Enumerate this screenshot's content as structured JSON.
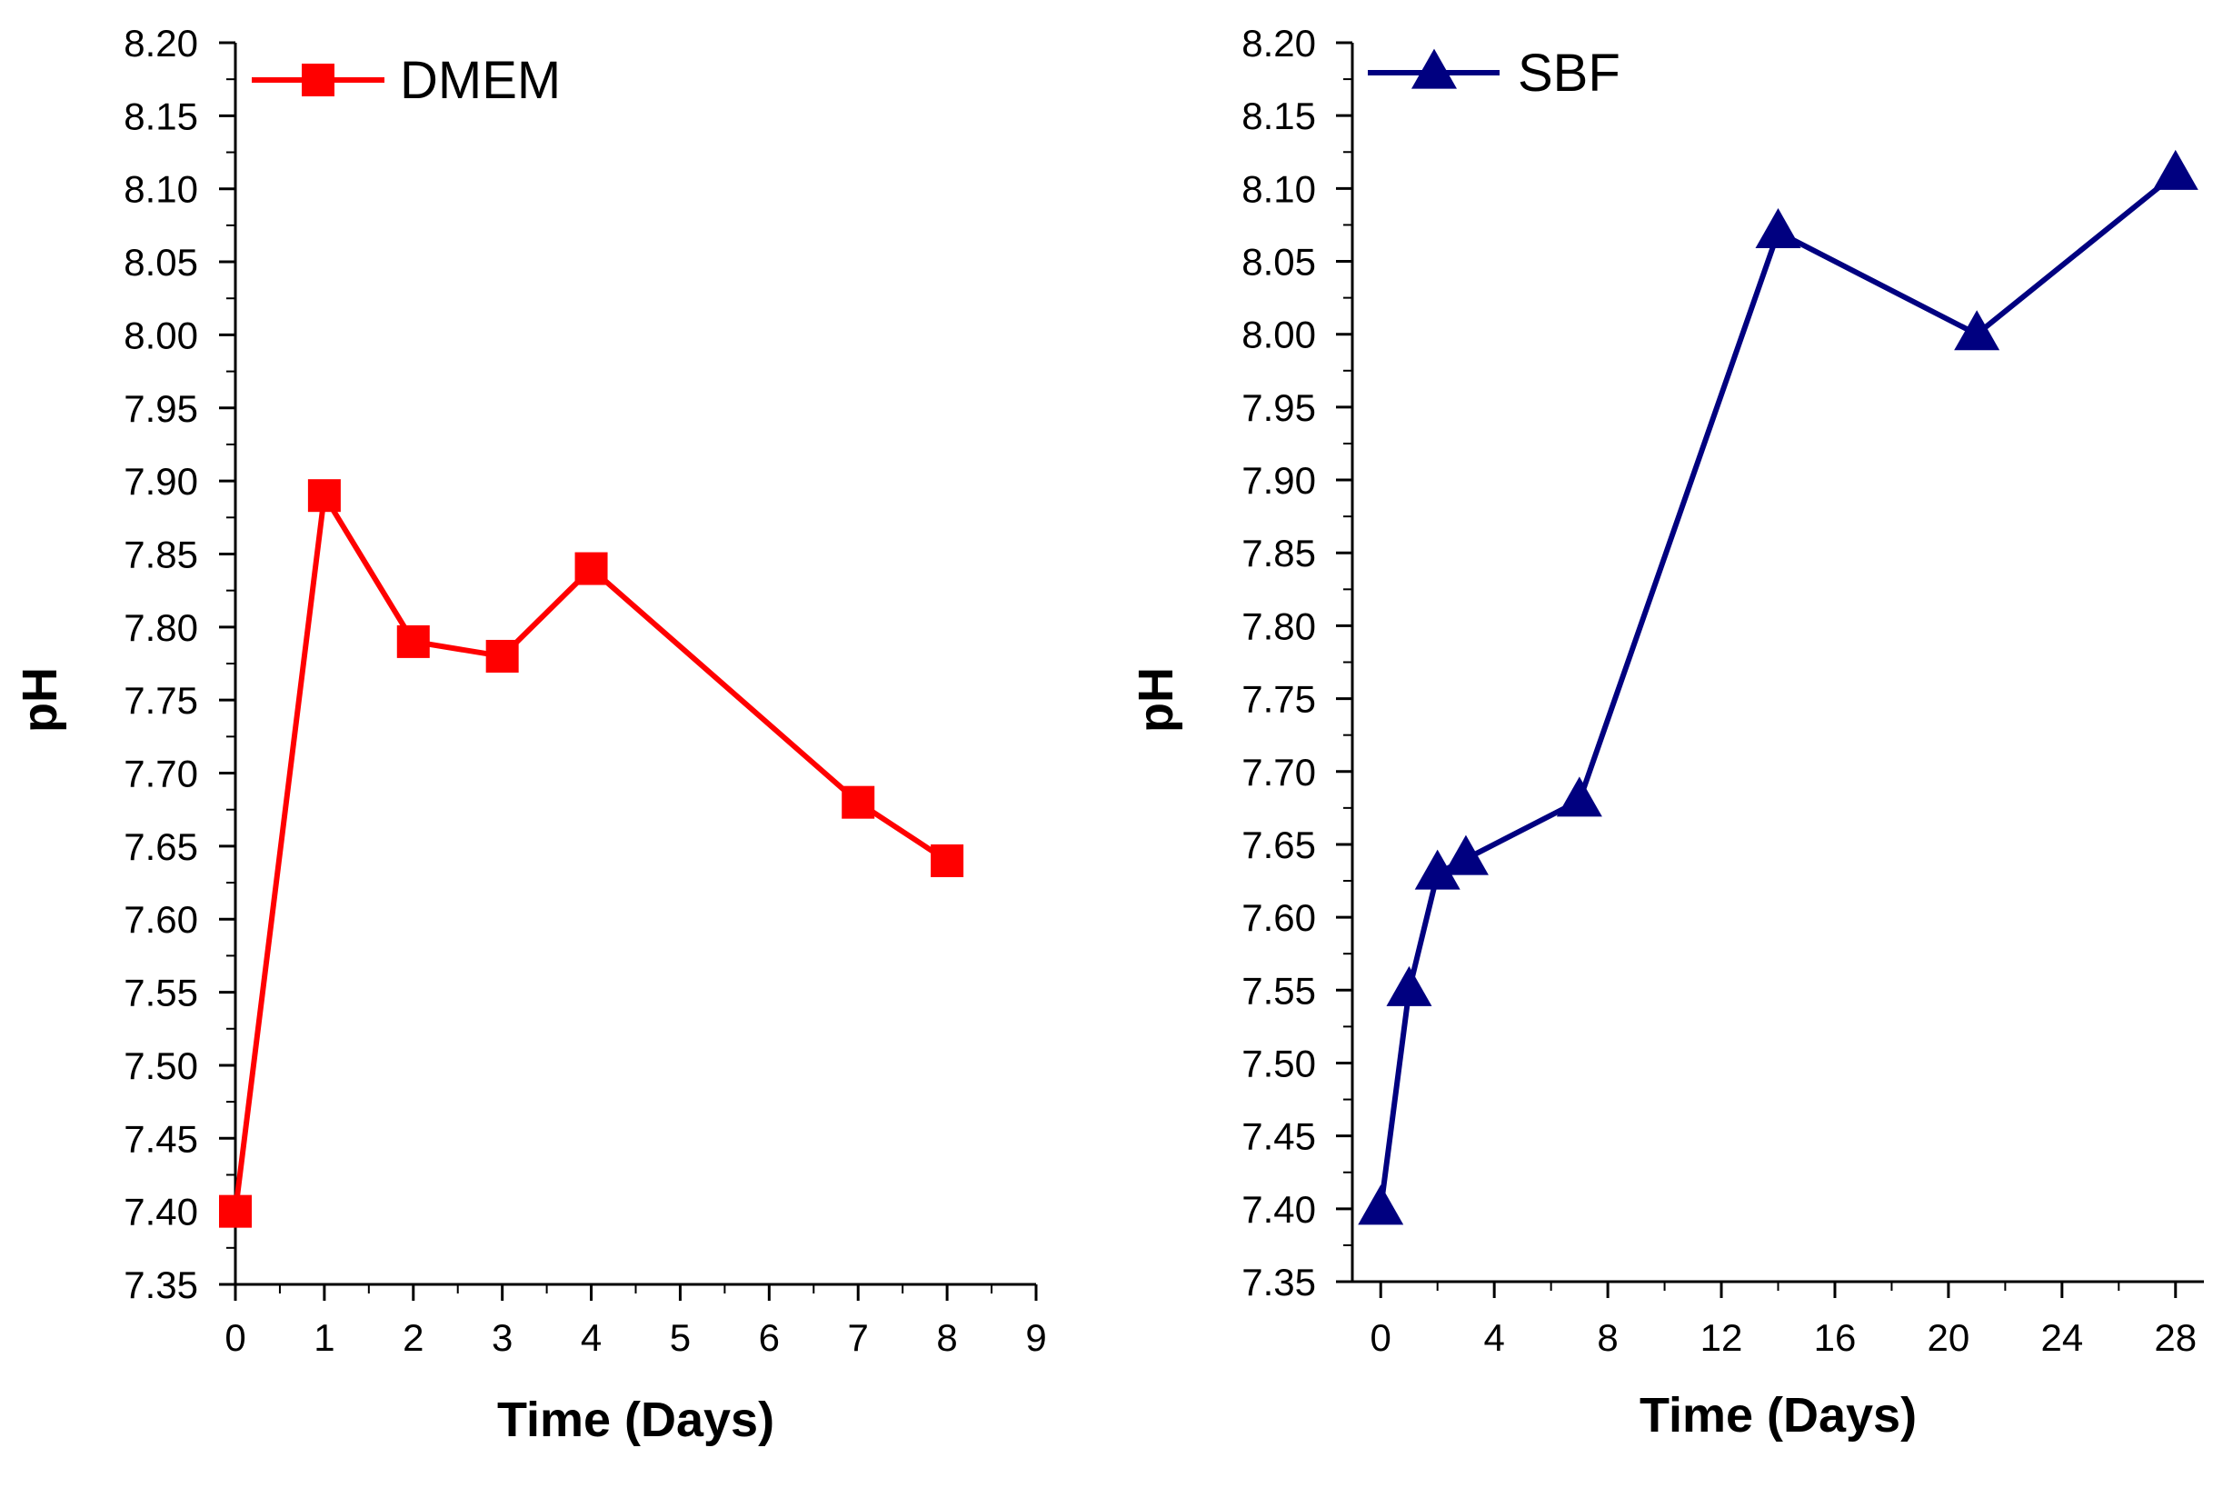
{
  "chart_data": [
    {
      "type": "line",
      "title": "",
      "xlabel": "Time (Days)",
      "ylabel": "pH",
      "xlim": [
        0,
        9
      ],
      "ylim": [
        7.35,
        8.2
      ],
      "x_ticks": [
        "0",
        "1",
        "2",
        "3",
        "4",
        "5",
        "6",
        "7",
        "8",
        "9"
      ],
      "y_ticks": [
        "7.35",
        "7.40",
        "7.45",
        "7.50",
        "7.55",
        "7.60",
        "7.65",
        "7.70",
        "7.75",
        "7.80",
        "7.85",
        "7.90",
        "7.95",
        "8.00",
        "8.05",
        "8.10",
        "8.15",
        "8.20"
      ],
      "grid": false,
      "legend_position": "top-left",
      "series": [
        {
          "name": "DMEM",
          "color": "#ff0000",
          "marker": "square",
          "x": [
            0,
            1,
            2,
            3,
            4,
            7,
            8
          ],
          "values": [
            7.4,
            7.89,
            7.79,
            7.78,
            7.84,
            7.68,
            7.64
          ]
        }
      ]
    },
    {
      "type": "line",
      "title": "",
      "xlabel": "Time (Days)",
      "ylabel": "pH",
      "xlim": [
        -1,
        29
      ],
      "ylim": [
        7.35,
        8.2
      ],
      "x_ticks": [
        "0",
        "4",
        "8",
        "12",
        "16",
        "20",
        "24",
        "28"
      ],
      "y_ticks": [
        "7.35",
        "7.40",
        "7.45",
        "7.50",
        "7.55",
        "7.60",
        "7.65",
        "7.70",
        "7.75",
        "7.80",
        "7.85",
        "7.90",
        "7.95",
        "8.00",
        "8.05",
        "8.10",
        "8.15",
        "8.20"
      ],
      "grid": false,
      "legend_position": "top-left",
      "series": [
        {
          "name": "SBF",
          "color": "#000080",
          "marker": "triangle",
          "x": [
            0,
            1,
            2,
            3,
            7,
            14,
            21,
            28
          ],
          "values": [
            7.4,
            7.55,
            7.63,
            7.64,
            7.68,
            8.07,
            8.0,
            8.11
          ]
        }
      ]
    }
  ]
}
